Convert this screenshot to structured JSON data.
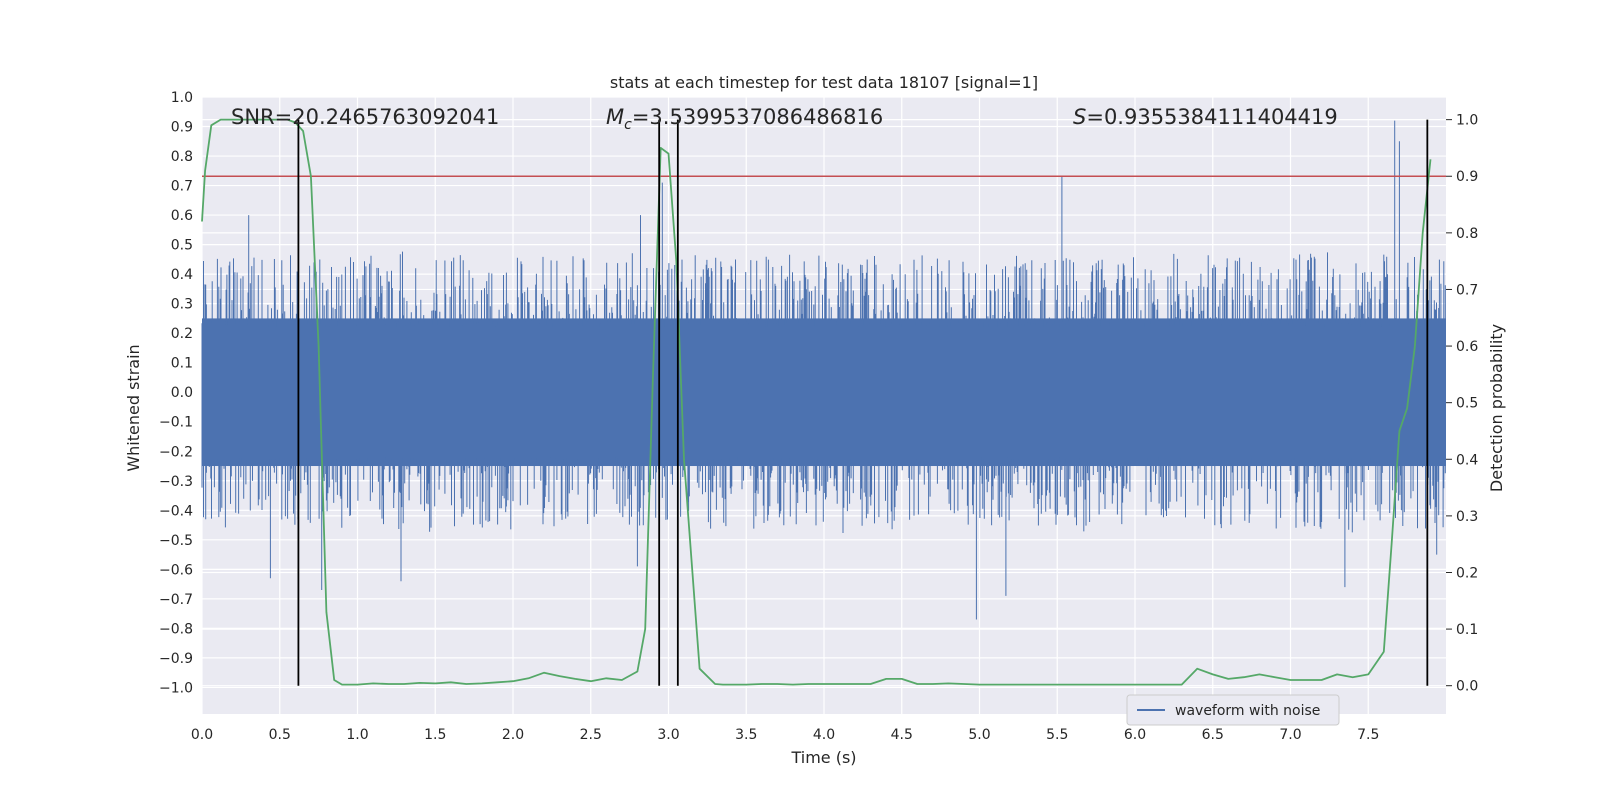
{
  "chart_data": {
    "type": "line",
    "title": "stats at each timestep for test data 18107 [signal=1]",
    "xlabel": "Time (s)",
    "ylabel_left": "Whitened strain",
    "ylabel_right": "Detection probability",
    "xlim": [
      0.0,
      8.0
    ],
    "ylim_left": [
      -1.09,
      1.0
    ],
    "ylim_right": [
      -0.05,
      1.04
    ],
    "x_ticks": [
      "0.0",
      "0.5",
      "1.0",
      "1.5",
      "2.0",
      "2.5",
      "3.0",
      "3.5",
      "4.0",
      "4.5",
      "5.0",
      "5.5",
      "6.0",
      "6.5",
      "7.0",
      "7.5"
    ],
    "y_left_ticks": [
      "1.0",
      "0.9",
      "0.8",
      "0.7",
      "0.6",
      "0.5",
      "0.4",
      "0.3",
      "0.2",
      "0.1",
      "0.0",
      "−0.1",
      "−0.2",
      "−0.3",
      "−0.4",
      "−0.5",
      "−0.6",
      "−0.7",
      "−0.8",
      "−0.9",
      "−1.0"
    ],
    "y_right_ticks": [
      "1.0",
      "0.9",
      "0.8",
      "0.7",
      "0.6",
      "0.5",
      "0.4",
      "0.3",
      "0.2",
      "0.1",
      "0.0"
    ],
    "grid": true,
    "legend_placement": "lower-right",
    "annotations": {
      "snr": "SNR=20.2465763092041",
      "mc_symbol": "M",
      "mc_subscript": "c",
      "mc_value": "=3.5399537086486816",
      "s_symbol": "S",
      "s_value": "=0.9355384111404419"
    },
    "threshold_probability": 0.9,
    "event_lines_x": [
      0.62,
      2.94,
      3.06,
      7.88
    ],
    "series": [
      {
        "name": "waveform with noise",
        "axis": "left",
        "color": "#4c72b0",
        "kind": "noise_envelope",
        "core_amplitude": 0.25,
        "typical_peak": [
          0.22,
          0.45
        ],
        "notable_peaks": [
          {
            "x": 0.3,
            "y": 0.6
          },
          {
            "x": 0.62,
            "y": 0.59
          },
          {
            "x": 2.82,
            "y": 0.6
          },
          {
            "x": 2.96,
            "y": 0.71
          },
          {
            "x": 5.53,
            "y": 0.73
          },
          {
            "x": 7.67,
            "y": 0.92
          },
          {
            "x": 7.7,
            "y": 0.85
          },
          {
            "x": 0.44,
            "y": -0.63
          },
          {
            "x": 0.77,
            "y": -0.67
          },
          {
            "x": 1.28,
            "y": -0.64
          },
          {
            "x": 2.8,
            "y": -0.59
          },
          {
            "x": 4.98,
            "y": -0.77
          },
          {
            "x": 5.17,
            "y": -0.69
          },
          {
            "x": 7.35,
            "y": -0.66
          },
          {
            "x": 7.94,
            "y": -0.55
          }
        ]
      },
      {
        "name": "",
        "axis": "right",
        "color": "#55a868",
        "kind": "line",
        "x": [
          0.0,
          0.02,
          0.06,
          0.12,
          0.2,
          0.3,
          0.4,
          0.5,
          0.55,
          0.6,
          0.65,
          0.7,
          0.75,
          0.8,
          0.85,
          0.9,
          1.0,
          1.1,
          1.2,
          1.3,
          1.4,
          1.5,
          1.6,
          1.7,
          1.8,
          1.9,
          2.0,
          2.1,
          2.2,
          2.3,
          2.4,
          2.5,
          2.6,
          2.7,
          2.8,
          2.85,
          2.9,
          2.95,
          3.0,
          3.05,
          3.1,
          3.2,
          3.3,
          3.35,
          3.4,
          3.5,
          3.6,
          3.7,
          3.8,
          3.9,
          4.0,
          4.1,
          4.2,
          4.3,
          4.4,
          4.5,
          4.6,
          4.7,
          4.8,
          4.9,
          5.0,
          5.5,
          6.0,
          6.3,
          6.4,
          6.5,
          6.6,
          6.7,
          6.8,
          6.9,
          7.0,
          7.1,
          7.2,
          7.3,
          7.4,
          7.5,
          7.6,
          7.65,
          7.7,
          7.75,
          7.8,
          7.85,
          7.9
        ],
        "y": [
          0.82,
          0.91,
          0.99,
          1.0,
          1.0,
          1.0,
          1.0,
          1.0,
          1.0,
          0.995,
          0.98,
          0.9,
          0.6,
          0.13,
          0.01,
          0.002,
          0.002,
          0.004,
          0.003,
          0.003,
          0.005,
          0.004,
          0.006,
          0.003,
          0.004,
          0.006,
          0.008,
          0.013,
          0.023,
          0.017,
          0.012,
          0.008,
          0.013,
          0.01,
          0.025,
          0.1,
          0.55,
          0.95,
          0.94,
          0.75,
          0.4,
          0.03,
          0.003,
          0.002,
          0.002,
          0.002,
          0.003,
          0.003,
          0.002,
          0.003,
          0.003,
          0.003,
          0.003,
          0.003,
          0.012,
          0.012,
          0.003,
          0.003,
          0.004,
          0.003,
          0.002,
          0.002,
          0.002,
          0.002,
          0.03,
          0.02,
          0.012,
          0.015,
          0.02,
          0.015,
          0.01,
          0.01,
          0.01,
          0.02,
          0.015,
          0.02,
          0.06,
          0.25,
          0.45,
          0.49,
          0.6,
          0.8,
          0.93
        ]
      },
      {
        "name": "",
        "axis": "right",
        "color": "#c44e52",
        "kind": "hline",
        "y": 0.9
      }
    ]
  }
}
